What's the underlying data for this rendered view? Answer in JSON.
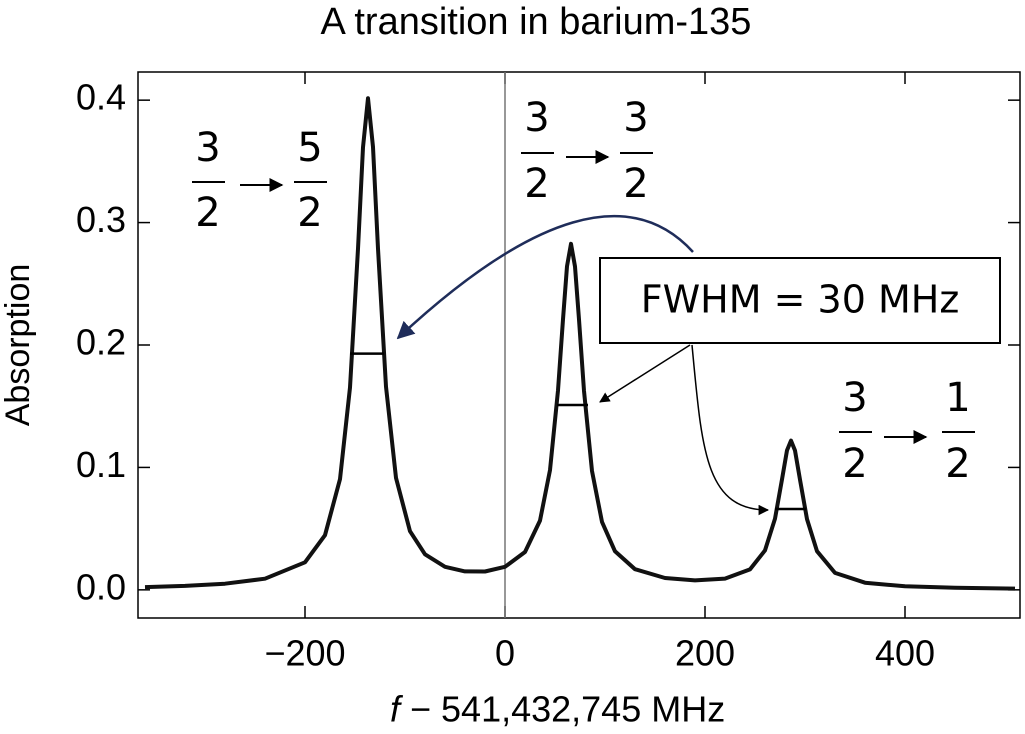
{
  "chart_data": {
    "type": "line",
    "title": "A transition in barium-135",
    "y_label": "Absorption",
    "x_label_variable": "f",
    "x_label": "− 541,432,745 MHz",
    "xlim": [
      -367,
      515
    ],
    "ylim": [
      -0.023,
      0.423
    ],
    "xticks": [
      {
        "value": -200,
        "label": "−200"
      },
      0,
      200,
      400
    ],
    "yticks": [
      {
        "value": 0,
        "label": "0.0"
      },
      0.1,
      0.2,
      0.3,
      0.4
    ],
    "color": "#111111",
    "x": [
      -360,
      -320,
      -280,
      -240,
      -200,
      -180,
      -165,
      -155,
      -147,
      -142,
      -137,
      -132,
      -127,
      -119,
      -109,
      -95,
      -80,
      -60,
      -40,
      -20,
      0,
      20,
      35,
      45,
      53,
      58,
      62,
      66,
      70,
      74,
      79,
      87,
      97,
      110,
      130,
      160,
      190,
      220,
      245,
      260,
      270,
      277,
      282,
      286,
      290,
      295,
      302,
      312,
      330,
      360,
      400,
      450,
      510
    ],
    "values": [
      0.0022,
      0.0032,
      0.005,
      0.0091,
      0.0225,
      0.0446,
      0.0905,
      0.1653,
      0.2786,
      0.3615,
      0.4016,
      0.3617,
      0.2787,
      0.1659,
      0.0914,
      0.0479,
      0.029,
      0.0188,
      0.0151,
      0.015,
      0.0188,
      0.0309,
      0.0566,
      0.0978,
      0.1629,
      0.221,
      0.2643,
      0.2827,
      0.2641,
      0.2208,
      0.1625,
      0.0971,
      0.0555,
      0.0315,
      0.0169,
      0.0097,
      0.0077,
      0.0092,
      0.0167,
      0.0322,
      0.0581,
      0.0902,
      0.1139,
      0.1219,
      0.1138,
      0.09,
      0.0578,
      0.0316,
      0.0138,
      0.0058,
      0.0029,
      0.0017,
      0.001
    ],
    "vertical_line_x": 0,
    "half_max_lines": [
      {
        "x": [
          -155,
          -121
        ],
        "y": 0.193
      },
      {
        "x": [
          52,
          83
        ],
        "y": 0.151
      },
      {
        "x": [
          270,
          301
        ],
        "y": 0.066
      }
    ],
    "annotation": "FWHM = 30 MHz",
    "transitions": [
      {
        "from_num": "3",
        "from_den": "2",
        "to_num": "5",
        "to_den": "2"
      },
      {
        "from_num": "3",
        "from_den": "2",
        "to_num": "3",
        "to_den": "2"
      },
      {
        "from_num": "3",
        "from_den": "2",
        "to_num": "1",
        "to_den": "2"
      }
    ]
  }
}
